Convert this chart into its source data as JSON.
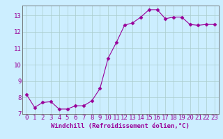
{
  "x": [
    0,
    1,
    2,
    3,
    4,
    5,
    6,
    7,
    8,
    9,
    10,
    11,
    12,
    13,
    14,
    15,
    16,
    17,
    18,
    19,
    20,
    21,
    22,
    23
  ],
  "y": [
    8.2,
    7.4,
    7.7,
    7.75,
    7.3,
    7.3,
    7.5,
    7.5,
    7.8,
    8.55,
    10.4,
    11.35,
    12.4,
    12.55,
    12.9,
    13.35,
    13.35,
    12.8,
    12.9,
    12.9,
    12.45,
    12.4,
    12.45,
    12.45
  ],
  "line_color": "#990099",
  "marker": "D",
  "marker_size": 2.5,
  "bg_color": "#cceeff",
  "grid_color": "#aacccc",
  "xlabel": "Windchill (Refroidissement éolien,°C)",
  "ylim": [
    7,
    13.6
  ],
  "yticks": [
    7,
    8,
    9,
    10,
    11,
    12,
    13
  ],
  "xticks": [
    0,
    1,
    2,
    3,
    4,
    5,
    6,
    7,
    8,
    9,
    10,
    11,
    12,
    13,
    14,
    15,
    16,
    17,
    18,
    19,
    20,
    21,
    22,
    23
  ],
  "xlabel_fontsize": 6.5,
  "tick_fontsize": 6.5
}
